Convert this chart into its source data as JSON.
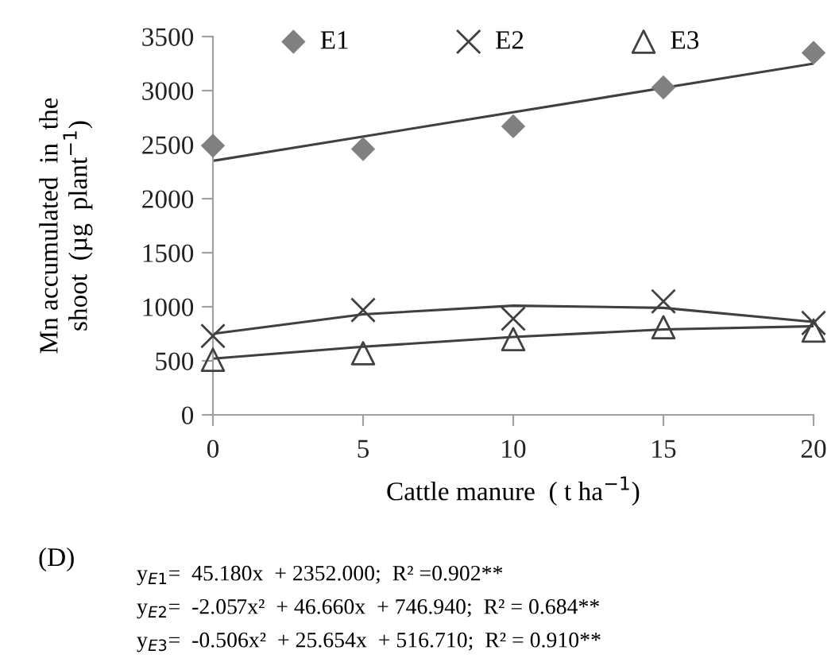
{
  "chart_data": {
    "type": "scatter",
    "xlabel": "Cattle manure  ( t ha$^{−1}$)",
    "ylabel": "Mn accumulated  in  the\nshoot  (µg  plant$^{−1}$)",
    "x": [
      0,
      5,
      10,
      15,
      20
    ],
    "series": [
      {
        "name": "E1",
        "color": "#808080",
        "marker": "diamond",
        "values": [
          2490,
          2460,
          2670,
          3030,
          3350
        ]
      },
      {
        "name": "E2",
        "color": "#404040",
        "marker": "cross",
        "values": [
          730,
          970,
          890,
          1050,
          850
        ]
      },
      {
        "name": "E3",
        "color": "#404040",
        "marker": "triangle",
        "values": [
          510,
          570,
          700,
          810,
          780
        ]
      },
      {
        "type": "line",
        "color": "#404040",
        "marker": "none",
        "x": [
          0,
          20
        ],
        "values": [
          2350,
          3250
        ]
      },
      {
        "type": "line",
        "color": "#404040",
        "marker": "none",
        "x": [
          0,
          5,
          10,
          15,
          20
        ],
        "values": [
          750,
          930,
          1010,
          990,
          860
        ]
      },
      {
        "type": "line",
        "color": "#404040",
        "marker": "none",
        "x": [
          0,
          5,
          10,
          15,
          20
        ],
        "values": [
          520,
          630,
          720,
          790,
          820
        ]
      }
    ],
    "xlim": [
      0,
      20
    ],
    "xticks": [
      0,
      5,
      10,
      15,
      20
    ],
    "ylim": [
      0,
      3500
    ],
    "yticks": [
      0,
      500,
      1000,
      1500,
      2000,
      2500,
      3000,
      3500
    ],
    "grid": false,
    "legend": "top",
    "annotations": [
      "(D)",
      "y$_{E1}$=  45.180x  + 2352.000;  R² =0.902**",
      "y$_{E2}$=  -2.057x²  + 46.660x  + 746.940;  R² = 0.684**",
      "y$_{E3}$=  -0.506x²  + 25.654x  + 516.710;  R² = 0.910**"
    ]
  }
}
